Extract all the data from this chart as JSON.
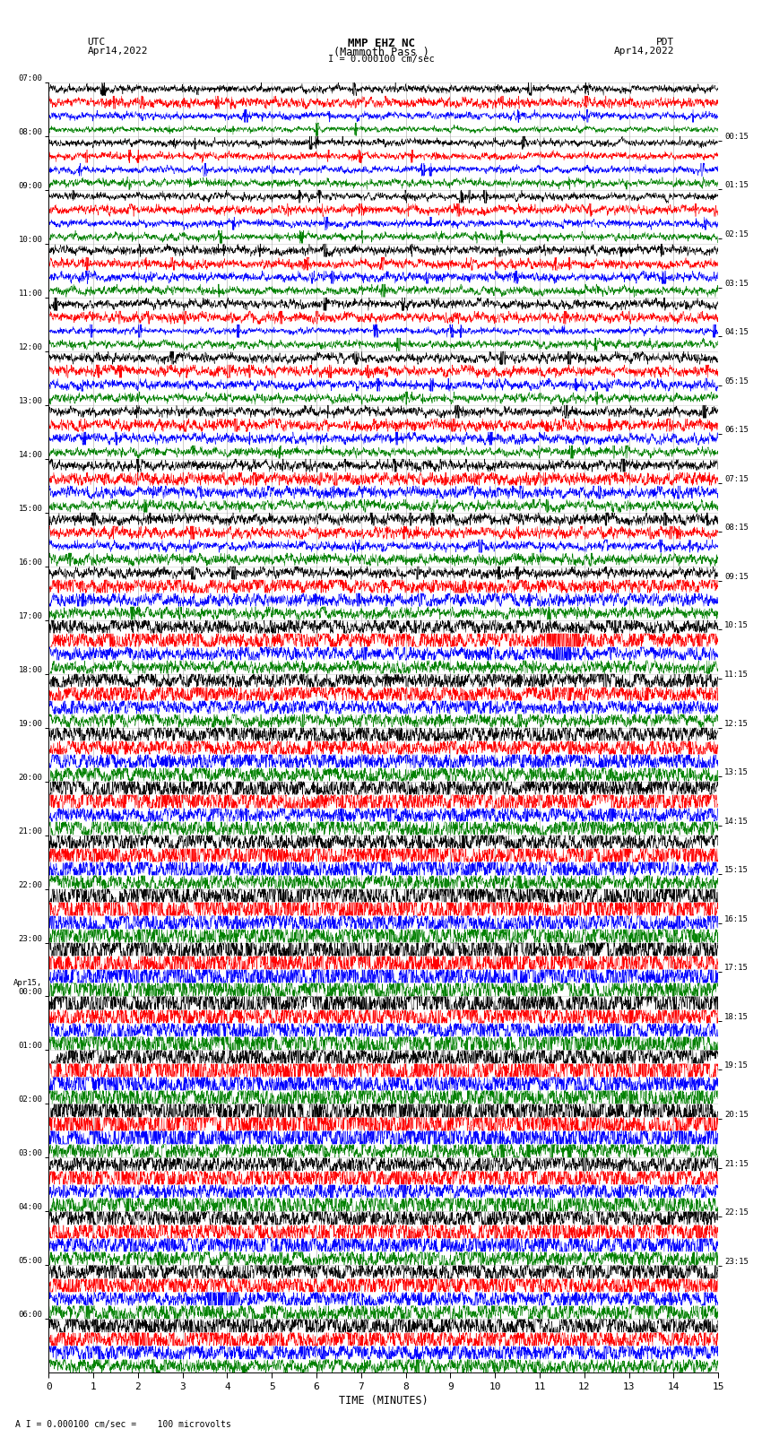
{
  "title_line1": "MMP EHZ NC",
  "title_line2": "(Mammoth Pass )",
  "scale_label": "I = 0.000100 cm/sec",
  "bottom_label": "A I = 0.000100 cm/sec =    100 microvolts",
  "xlabel": "TIME (MINUTES)",
  "left_header_line1": "UTC",
  "left_header_line2": "Apr14,2022",
  "right_header_line1": "PDT",
  "right_header_line2": "Apr14,2022",
  "left_times": [
    "07:00",
    "08:00",
    "09:00",
    "10:00",
    "11:00",
    "12:00",
    "13:00",
    "14:00",
    "15:00",
    "16:00",
    "17:00",
    "18:00",
    "19:00",
    "20:00",
    "21:00",
    "22:00",
    "23:00",
    "Apr15,\n00:00",
    "01:00",
    "02:00",
    "03:00",
    "04:00",
    "05:00",
    "06:00"
  ],
  "right_times": [
    "00:15",
    "01:15",
    "02:15",
    "03:15",
    "04:15",
    "05:15",
    "06:15",
    "07:15",
    "08:15",
    "09:15",
    "10:15",
    "11:15",
    "12:15",
    "13:15",
    "14:15",
    "15:15",
    "16:15",
    "17:15",
    "18:15",
    "19:15",
    "20:15",
    "21:15",
    "22:15",
    "23:15"
  ],
  "n_hours": 24,
  "n_traces_per_hour": 4,
  "colors": [
    "black",
    "red",
    "blue",
    "green"
  ],
  "bg_color": "white",
  "n_points": 3000,
  "grid_color": "#999999",
  "fig_width": 8.5,
  "fig_height": 16.13
}
